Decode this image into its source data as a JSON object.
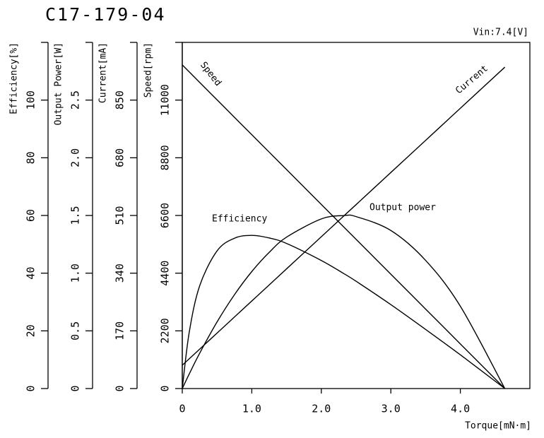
{
  "chart_data": {
    "type": "line",
    "title": "C17-179-04",
    "subtitle": "Vin:7.4[V]",
    "x_label": "Torque[mN·m]",
    "xlim": [
      0,
      5
    ],
    "xticks": [
      0,
      {
        "value": 1,
        "label": "1.0"
      },
      {
        "value": 2,
        "label": "2.0"
      },
      {
        "value": 3,
        "label": "3.0"
      },
      {
        "value": 4,
        "label": "4.0"
      }
    ],
    "y_axes": [
      {
        "label": "Efficiency[%]",
        "ylim": [
          0,
          120
        ],
        "yticks": [
          0,
          20,
          40,
          60,
          80,
          100
        ]
      },
      {
        "label": "Output Power[W]",
        "ylim": [
          0,
          3
        ],
        "yticks": [
          0,
          0.5,
          {
            "value": 1,
            "label": "1.0"
          },
          1.5,
          {
            "value": 2,
            "label": "2.0"
          },
          2.5
        ]
      },
      {
        "label": "Current[mA]",
        "ylim": [
          0,
          1020
        ],
        "yticks": [
          0,
          170,
          340,
          510,
          680,
          850
        ]
      },
      {
        "label": "Speed[rpm]",
        "ylim": [
          0,
          13200
        ],
        "yticks": [
          0,
          2200,
          4400,
          6600,
          8800,
          11000
        ]
      }
    ],
    "x": [
      0,
      0.1,
      0.25,
      0.5,
      0.75,
      1.0,
      1.25,
      1.5,
      2.0,
      2.32,
      2.5,
      3.0,
      3.5,
      4.0,
      4.64
    ],
    "series": [
      {
        "name": "Efficiency",
        "color": "#000000",
        "axis": 0,
        "values": [
          0,
          19.5,
          35.6,
          47.7,
          52.1,
          53.1,
          52.2,
          50.3,
          44.4,
          39.9,
          37.2,
          29.1,
          20.5,
          11.7,
          0
        ]
      },
      {
        "name": "Output power",
        "color": "#000000",
        "axis": 1,
        "values": [
          0,
          0.126,
          0.306,
          0.577,
          0.813,
          1.014,
          1.18,
          1.312,
          1.47,
          1.499,
          1.49,
          1.37,
          1.111,
          0.713,
          0
        ]
      },
      {
        "name": "Current",
        "color": "#000000",
        "axis": 2,
        "values": [
          68.7,
          87.6,
          116,
          163.4,
          210.7,
          258,
          305.3,
          352.7,
          447.3,
          507.9,
          541.9,
          636.6,
          731.2,
          825.9,
          947
        ]
      },
      {
        "name": "Speed",
        "color": "#000000",
        "axis": 3,
        "values": [
          12340,
          12074,
          11675,
          11010,
          10345,
          9680,
          9016,
          8351,
          7021,
          6170,
          5691,
          4362,
          3032,
          1702,
          0
        ]
      }
    ]
  }
}
